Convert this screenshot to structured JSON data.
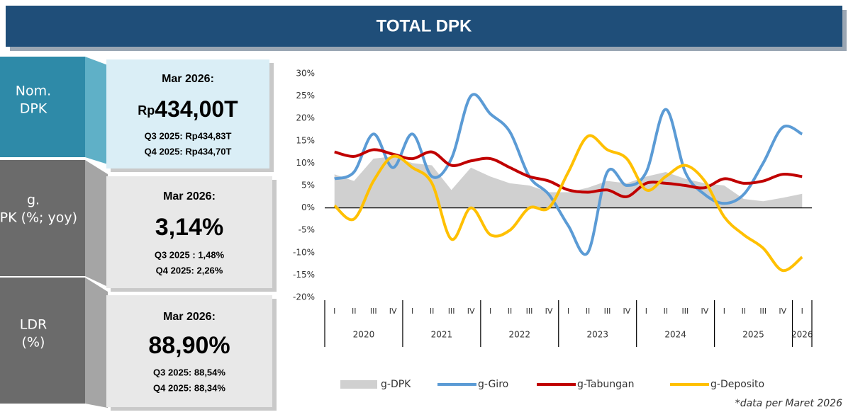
{
  "header": {
    "title": "TOTAL DPK"
  },
  "panels": [
    {
      "label": "Nom. DPK",
      "period": "Mar 2026:",
      "prefix": "Rp",
      "value": "434,00T",
      "q3": "Q3 2025: Rp434,83T",
      "q4": "Q4 2025: Rp434,70T"
    },
    {
      "label": "g. DPK (%; yoy)",
      "period": "Mar 2026:",
      "value": "3,14%",
      "q3": "Q3 2025 : 1,48%",
      "q4": "Q4 2025: 2,26%"
    },
    {
      "label": "LDR (%)",
      "period": "Mar 2026:",
      "value": "88,90%",
      "q3": "Q3 2025: 88,54%",
      "q4": "Q4 2025: 88,34%"
    }
  ],
  "chart_data": {
    "type": "line",
    "categories": [
      "I",
      "II",
      "III",
      "IV",
      "I",
      "II",
      "III",
      "IV",
      "I",
      "II",
      "III",
      "IV",
      "I",
      "II",
      "III",
      "IV",
      "I",
      "II",
      "III",
      "IV",
      "I",
      "II",
      "III",
      "IV",
      "I"
    ],
    "groups": [
      "2020",
      "2021",
      "2022",
      "2023",
      "2024",
      "2025",
      "2026"
    ],
    "ylim": [
      -20,
      30
    ],
    "yticks": [
      {
        "value": -20,
        "label": "-20%"
      },
      {
        "value": -15,
        "label": "-15%"
      },
      {
        "value": -10,
        "label": "-10%"
      },
      {
        "value": -5,
        "label": "-5%"
      },
      {
        "value": 0,
        "label": "0%"
      },
      {
        "value": 5,
        "label": "5%"
      },
      {
        "value": 10,
        "label": "10%"
      },
      {
        "value": 15,
        "label": "15%"
      },
      {
        "value": 20,
        "label": "20%"
      },
      {
        "value": 25,
        "label": "25%"
      },
      {
        "value": 30,
        "label": "30%"
      }
    ],
    "series": [
      {
        "name": "g-DPK",
        "kind": "area",
        "color": "#d0d0d0",
        "values": [
          7.5,
          6,
          11,
          11.5,
          10,
          9.5,
          4,
          9,
          7,
          5.5,
          5,
          3.5,
          3.5,
          4.5,
          6,
          5.5,
          7,
          8,
          6.5,
          5.5,
          5,
          2,
          1.48,
          2.26,
          3.14
        ]
      },
      {
        "name": "g-Giro",
        "kind": "line",
        "color": "#5b9bd5",
        "values": [
          6.5,
          8,
          16.5,
          9,
          16.5,
          7,
          11,
          25,
          21,
          17,
          7,
          3,
          -4,
          -10,
          8,
          5,
          8,
          22,
          8,
          3,
          1,
          3,
          10,
          18,
          16.5
        ]
      },
      {
        "name": "g-Tabungan",
        "kind": "line",
        "color": "#c00000",
        "values": [
          12.5,
          11.5,
          13,
          12,
          11,
          12.5,
          9.5,
          10.5,
          11,
          9,
          7,
          6,
          4,
          3.5,
          4,
          2.5,
          5.5,
          5.5,
          5,
          4.5,
          6.5,
          5.5,
          6,
          7.5,
          7
        ]
      },
      {
        "name": "g-Deposito",
        "kind": "line",
        "color": "#ffc000",
        "values": [
          0.5,
          -2.5,
          6,
          11.5,
          9,
          5.5,
          -7,
          0,
          -6,
          -5,
          0,
          0,
          8,
          16,
          13,
          11,
          4,
          7,
          9.5,
          6,
          -2,
          -6,
          -9,
          -14,
          -11
        ]
      }
    ],
    "note": "*data per Maret 2026"
  }
}
